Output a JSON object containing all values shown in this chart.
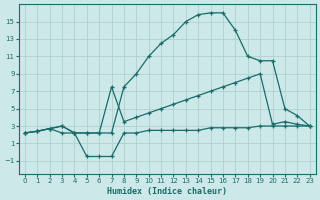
{
  "xlabel": "Humidex (Indice chaleur)",
  "xlim": [
    -0.5,
    23.5
  ],
  "ylim": [
    -2.5,
    17
  ],
  "yticks": [
    -1,
    1,
    3,
    5,
    7,
    9,
    11,
    13,
    15
  ],
  "xticks": [
    0,
    1,
    2,
    3,
    4,
    5,
    6,
    7,
    8,
    9,
    10,
    11,
    12,
    13,
    14,
    15,
    16,
    17,
    18,
    19,
    20,
    21,
    22,
    23
  ],
  "bg_color": "#cde8e8",
  "grid_color": "#b0d0d0",
  "line_color": "#1a6b6b",
  "lines": [
    {
      "x": [
        0,
        1,
        2,
        3,
        4,
        5,
        6,
        7,
        8,
        9,
        10,
        11,
        12,
        13,
        14,
        15,
        16,
        17,
        18,
        19,
        20,
        21,
        22,
        23
      ],
      "y": [
        2.2,
        2.4,
        2.7,
        3.0,
        2.2,
        2.2,
        2.2,
        2.2,
        7.5,
        9.0,
        11.0,
        12.5,
        13.5,
        15.0,
        15.8,
        16.0,
        16.0,
        14.0,
        11.0,
        10.5,
        10.5,
        5.0,
        4.2,
        3.0
      ]
    },
    {
      "x": [
        0,
        1,
        2,
        3,
        4,
        5,
        6,
        7,
        8,
        9,
        10,
        11,
        12,
        13,
        14,
        15,
        16,
        17,
        18,
        19,
        20,
        21,
        22,
        23
      ],
      "y": [
        2.2,
        2.4,
        2.7,
        3.0,
        2.2,
        2.2,
        2.2,
        7.5,
        3.5,
        4.0,
        4.5,
        5.0,
        5.5,
        6.0,
        6.5,
        7.0,
        7.5,
        8.0,
        8.5,
        9.0,
        3.2,
        3.5,
        3.2,
        3.0
      ]
    },
    {
      "x": [
        0,
        1,
        2,
        3,
        4,
        5,
        6,
        7,
        8,
        9,
        10,
        11,
        12,
        13,
        14,
        15,
        16,
        17,
        18,
        19,
        20,
        21,
        22,
        23
      ],
      "y": [
        2.2,
        2.4,
        2.7,
        2.2,
        2.2,
        -0.5,
        -0.5,
        -0.5,
        2.2,
        2.2,
        2.5,
        2.5,
        2.5,
        2.5,
        2.5,
        2.8,
        2.8,
        2.8,
        2.8,
        3.0,
        3.0,
        3.0,
        3.0,
        3.0
      ]
    }
  ]
}
